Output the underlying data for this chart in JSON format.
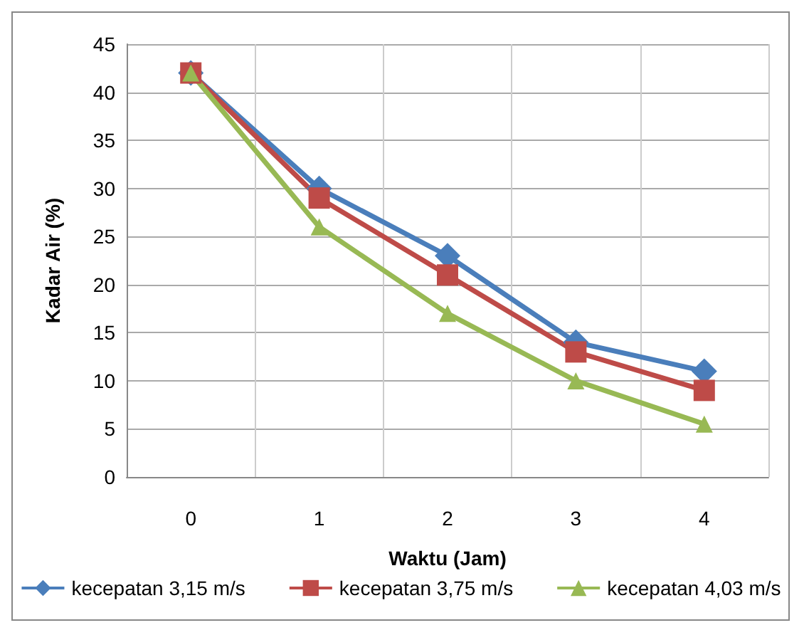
{
  "chart_data": {
    "type": "line",
    "xlabel": "Waktu (Jam)",
    "ylabel": "Kadar Air (%)",
    "categories": [
      "0",
      "1",
      "2",
      "3",
      "4"
    ],
    "series": [
      {
        "name": "kecepatan 3,15 m/s",
        "color": "#4a7ebb",
        "marker": "diamond",
        "values": [
          42,
          30,
          23,
          14,
          11
        ]
      },
      {
        "name": "kecepatan 3,75 m/s",
        "color": "#be4b48",
        "marker": "square",
        "values": [
          42,
          29,
          21,
          13,
          9
        ]
      },
      {
        "name": "kecepatan 4,03 m/s",
        "color": "#98b954",
        "marker": "triangle",
        "values": [
          42,
          26,
          17,
          10,
          5.5
        ]
      }
    ],
    "ylim": [
      0,
      45
    ],
    "yticks": [
      0,
      5,
      10,
      15,
      20,
      25,
      30,
      35,
      40,
      45
    ],
    "grid": true,
    "legend": "bottom"
  }
}
